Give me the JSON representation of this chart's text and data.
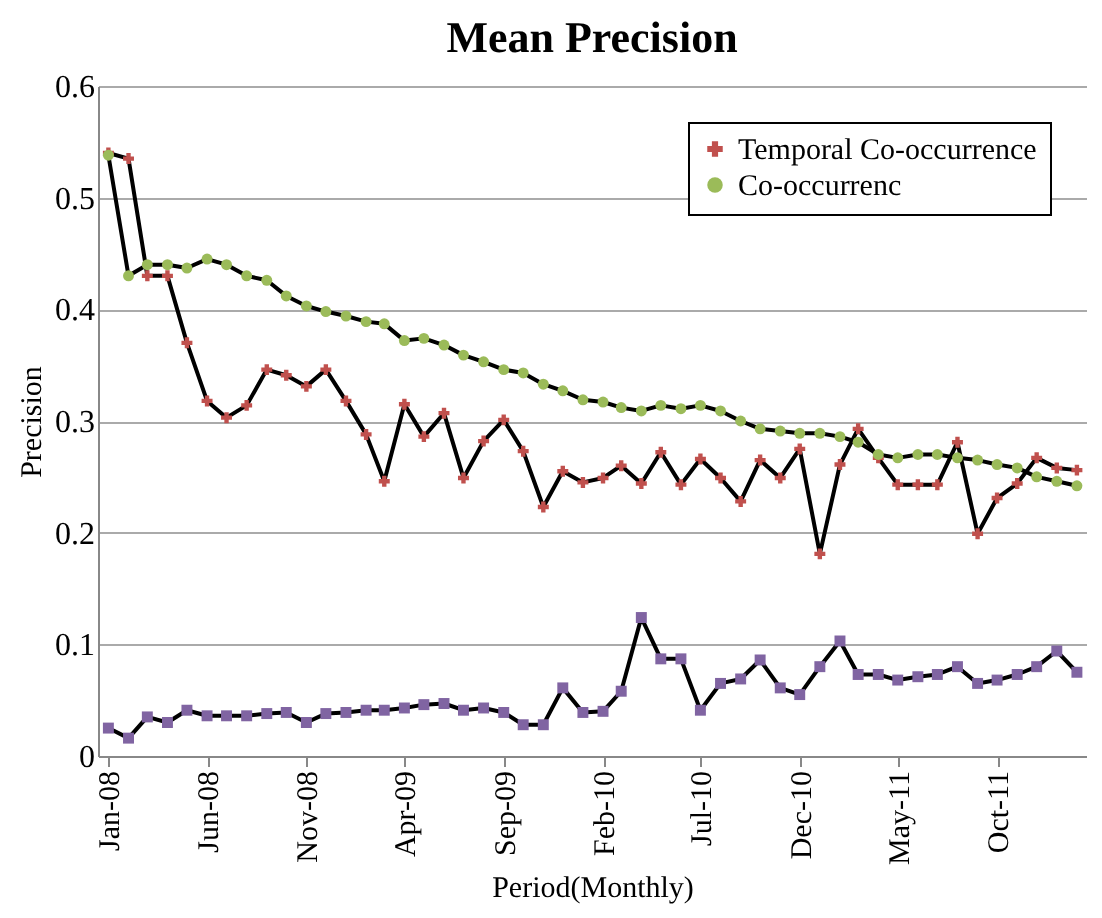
{
  "chart_data": {
    "type": "line",
    "title": "Mean Precision",
    "xlabel": "Period(Monthly)",
    "ylabel": "Precision",
    "x": [
      "2008-01",
      "2008-02",
      "2008-03",
      "2008-04",
      "2008-05",
      "2008-06",
      "2008-07",
      "2008-08",
      "2008-09",
      "2008-10",
      "2008-11",
      "2008-12",
      "2009-01",
      "2009-02",
      "2009-03",
      "2009-04",
      "2009-05",
      "2009-06",
      "2009-07",
      "2009-08",
      "2009-09",
      "2009-10",
      "2009-11",
      "2009-12",
      "2010-01",
      "2010-02",
      "2010-03",
      "2010-04",
      "2010-05",
      "2010-06",
      "2010-07",
      "2010-08",
      "2010-09",
      "2010-10",
      "2010-11",
      "2010-12",
      "2011-01",
      "2011-02",
      "2011-03",
      "2011-04",
      "2011-05",
      "2011-06",
      "2011-07",
      "2011-08",
      "2011-09",
      "2011-10",
      "2011-11",
      "2011-12",
      "2012-01",
      "2012-02"
    ],
    "series": [
      {
        "name": "Temporal Co-occurrence",
        "color": "#c0504d",
        "marker": "cross",
        "values": [
          0.54,
          0.535,
          0.43,
          0.43,
          0.37,
          0.318,
          0.303,
          0.314,
          0.346,
          0.341,
          0.331,
          0.346,
          0.318,
          0.288,
          0.246,
          0.315,
          0.286,
          0.307,
          0.249,
          0.282,
          0.301,
          0.273,
          0.223,
          0.255,
          0.245,
          0.249,
          0.26,
          0.244,
          0.272,
          0.243,
          0.266,
          0.249,
          0.228,
          0.265,
          0.249,
          0.275,
          0.181,
          0.261,
          0.293,
          0.267,
          0.243,
          0.243,
          0.243,
          0.281,
          0.199,
          0.231,
          0.244,
          0.267,
          0.258,
          0.256
        ]
      },
      {
        "name": "Co-occurrenc",
        "color": "#9bbb59",
        "marker": "circle",
        "values": [
          0.538,
          0.43,
          0.44,
          0.44,
          0.437,
          0.445,
          0.44,
          0.43,
          0.426,
          0.412,
          0.403,
          0.398,
          0.394,
          0.389,
          0.387,
          0.372,
          0.374,
          0.368,
          0.359,
          0.353,
          0.346,
          0.343,
          0.333,
          0.327,
          0.319,
          0.317,
          0.312,
          0.309,
          0.314,
          0.311,
          0.314,
          0.309,
          0.3,
          0.293,
          0.291,
          0.289,
          0.289,
          0.286,
          0.281,
          0.27,
          0.267,
          0.27,
          0.27,
          0.267,
          0.265,
          0.261,
          0.258,
          0.25,
          0.246,
          0.242
        ]
      },
      {
        "color": "#8064a2",
        "marker": "square",
        "values": [
          0.025,
          0.016,
          0.035,
          0.03,
          0.041,
          0.036,
          0.036,
          0.036,
          0.038,
          0.039,
          0.03,
          0.038,
          0.039,
          0.041,
          0.041,
          0.043,
          0.046,
          0.047,
          0.041,
          0.043,
          0.039,
          0.028,
          0.028,
          0.061,
          0.039,
          0.04,
          0.058,
          0.124,
          0.087,
          0.087,
          0.041,
          0.065,
          0.069,
          0.086,
          0.061,
          0.055,
          0.08,
          0.103,
          0.073,
          0.073,
          0.068,
          0.071,
          0.073,
          0.08,
          0.065,
          0.068,
          0.073,
          0.08,
          0.094,
          0.075
        ]
      }
    ],
    "xlim": [
      "2007-12-16",
      "2012-02-15"
    ],
    "xticks": [
      {
        "value": "2008-01",
        "label": "Jan-08"
      },
      {
        "value": "2008-06",
        "label": "Jun-08"
      },
      {
        "value": "2008-11",
        "label": "Nov-08"
      },
      {
        "value": "2009-04",
        "label": "Apr-09"
      },
      {
        "value": "2009-09",
        "label": "Sep-09"
      },
      {
        "value": "2010-02",
        "label": "Feb-10"
      },
      {
        "value": "2010-07",
        "label": "Jul-10"
      },
      {
        "value": "2010-12",
        "label": "Dec-10"
      },
      {
        "value": "2011-05",
        "label": "May-11"
      },
      {
        "value": "2011-10",
        "label": "Oct-11"
      }
    ],
    "ylim": [
      0,
      0.6
    ],
    "yticks": [
      0,
      0.1,
      0.2,
      0.3,
      0.4,
      0.5,
      0.6
    ],
    "grid": "y",
    "legend": "top right",
    "line_style": "solid"
  }
}
